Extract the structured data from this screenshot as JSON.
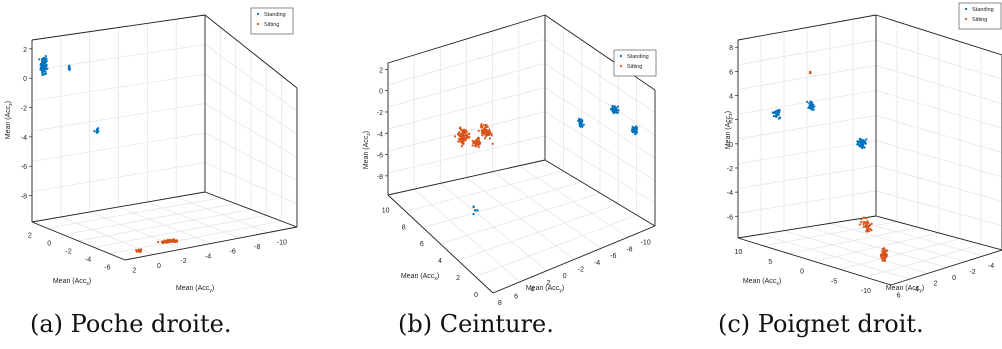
{
  "figure": {
    "captions": [
      "(a) Poche droite.",
      "(b) Ceinture.",
      "(c) Poignet droit."
    ]
  },
  "colors": {
    "standing": "#0072BD",
    "sitting": "#D95319",
    "grid": "#e6e6e6",
    "axis": "#222222"
  },
  "chart_data": [
    {
      "type": "scatter",
      "projection": "3d",
      "caption": "(a) Poche droite.",
      "xlabel": "Mean (Acc_x)",
      "ylabel": "Mean (Acc_y)",
      "zlabel": "Mean (Acc_z)",
      "xticks": [
        "2",
        "0",
        "-2",
        "-4",
        "-6"
      ],
      "yticks": [
        "2",
        "0",
        "-2",
        "-4",
        "-6",
        "-8",
        "-10"
      ],
      "zticks": [
        "2",
        "0",
        "-2",
        "-4",
        "-6",
        "-8"
      ],
      "xlim": [
        -7,
        3
      ],
      "ylim": [
        -10,
        3
      ],
      "zlim": [
        -10,
        3
      ],
      "legend": {
        "position": "top-right",
        "entries": [
          "Standing",
          "Sitting"
        ]
      },
      "grid": true,
      "series": [
        {
          "name": "Standing",
          "clusters": [
            {
              "x": -6.5,
              "y": 2.5,
              "z": 1.5,
              "spread": [
                0.2,
                0.3,
                0.9
              ],
              "n": 90
            },
            {
              "x": -6.6,
              "y": 0.4,
              "z": 1.0,
              "spread": [
                0.15,
                0.1,
                0.4
              ],
              "n": 8
            },
            {
              "x": -6.6,
              "y": -1.6,
              "z": -4.1,
              "spread": [
                0.15,
                0.2,
                0.3
              ],
              "n": 14
            }
          ]
        },
        {
          "name": "Sitting",
          "clusters": [
            {
              "x": 2.6,
              "y": -1.0,
              "z": -9.5,
              "spread": [
                0.2,
                0.3,
                0.1
              ],
              "n": 25
            },
            {
              "x": 1.6,
              "y": -1.2,
              "z": -9.8,
              "spread": [
                0.2,
                0.8,
                0.1
              ],
              "n": 50
            },
            {
              "x": 2.5,
              "y": 1.6,
              "z": -9.7,
              "spread": [
                0.2,
                0.3,
                0.1
              ],
              "n": 15
            }
          ]
        }
      ]
    },
    {
      "type": "scatter",
      "projection": "3d",
      "caption": "(b) Ceinture.",
      "xlabel": "Mean (Acc_x)",
      "ylabel": "Mean (Acc_y)",
      "zlabel": "Mean (Acc_z)",
      "xticks": [
        "10",
        "8",
        "6",
        "4",
        "2",
        "0"
      ],
      "yticks": [
        "8",
        "6",
        "4",
        "2",
        "0",
        "-2",
        "-4",
        "-6",
        "-8",
        "-10"
      ],
      "zticks": [
        "2",
        "0",
        "-2",
        "-4",
        "-6",
        "-8"
      ],
      "xlim": [
        0,
        10
      ],
      "ylim": [
        -10,
        8
      ],
      "zlim": [
        -9,
        2
      ],
      "legend": {
        "position": "top-right",
        "entries": [
          "Standing",
          "Sitting"
        ]
      },
      "grid": true,
      "series": [
        {
          "name": "Standing",
          "clusters": [
            {
              "x": 9.6,
              "y": -2.2,
              "z": 0.7,
              "spread": [
                0.3,
                0.5,
                0.3
              ],
              "n": 30
            },
            {
              "x": 9.6,
              "y": -6.0,
              "z": 0.6,
              "spread": [
                0.3,
                0.4,
                0.4
              ],
              "n": 40
            },
            {
              "x": 9.6,
              "y": -8.2,
              "z": -1.5,
              "spread": [
                0.3,
                0.3,
                0.4
              ],
              "n": 40
            },
            {
              "x": 4.0,
              "y": 3.0,
              "z": -8.5,
              "spread": [
                0.4,
                0.4,
                0.3
              ],
              "n": 6
            }
          ]
        },
        {
          "name": "Sitting",
          "clusters": [
            {
              "x": 6.0,
              "y": 4.0,
              "z": -1.0,
              "spread": [
                0.8,
                0.6,
                0.6
              ],
              "n": 60
            },
            {
              "x": 3.0,
              "y": 3.0,
              "z": -3.5,
              "spread": [
                0.6,
                0.4,
                0.5
              ],
              "n": 40
            },
            {
              "x": 1.0,
              "y": 1.0,
              "z": -6.0,
              "spread": [
                0.4,
                0.4,
                0.6
              ],
              "n": 50
            },
            {
              "x": 0.3,
              "y": -1.5,
              "z": -7.5,
              "spread": [
                0.3,
                0.5,
                0.5
              ],
              "n": 40
            }
          ]
        }
      ]
    },
    {
      "type": "scatter",
      "projection": "3d",
      "caption": "(c) Poignet droit.",
      "xlabel": "Mean (Acc_x)",
      "ylabel": "Mean (Acc_y)",
      "zlabel": "Mean (Acc_z)",
      "xticks": [
        "10",
        "5",
        "0",
        "-5",
        "-10"
      ],
      "yticks": [
        "6",
        "4",
        "2",
        "0",
        "-2",
        "-4"
      ],
      "zticks": [
        "8",
        "6",
        "4",
        "2",
        "0",
        "-2",
        "-4",
        "-6"
      ],
      "xlim": [
        -10,
        10
      ],
      "ylim": [
        -6,
        6
      ],
      "zlim": [
        -6,
        8
      ],
      "legend": {
        "position": "top-right",
        "entries": [
          "Standing",
          "Sitting"
        ]
      },
      "grid": true,
      "series": [
        {
          "name": "Standing",
          "clusters": [
            {
              "x": 4.0,
              "y": 4.2,
              "z": 2.5,
              "spread": [
                0.8,
                0.3,
                0.6
              ],
              "n": 45
            },
            {
              "x": -8.0,
              "y": 3.5,
              "z": 2.5,
              "spread": [
                0.8,
                0.3,
                0.5
              ],
              "n": 30
            },
            {
              "x": -9.5,
              "y": -1.5,
              "z": 1.8,
              "spread": [
                0.5,
                0.3,
                0.4
              ],
              "n": 30
            }
          ]
        },
        {
          "name": "Sitting",
          "clusters": [
            {
              "x": 9.0,
              "y": 6.0,
              "z": -4.0,
              "spread": [
                0.6,
                0.3,
                0.6
              ],
              "n": 55
            },
            {
              "x": 2.0,
              "y": 2.0,
              "z": -4.0,
              "spread": [
                1.0,
                0.4,
                0.8
              ],
              "n": 40
            },
            {
              "x": -3.0,
              "y": 4.0,
              "z": 6.3,
              "spread": [
                0.2,
                0.2,
                0.2
              ],
              "n": 4
            }
          ]
        }
      ]
    }
  ]
}
